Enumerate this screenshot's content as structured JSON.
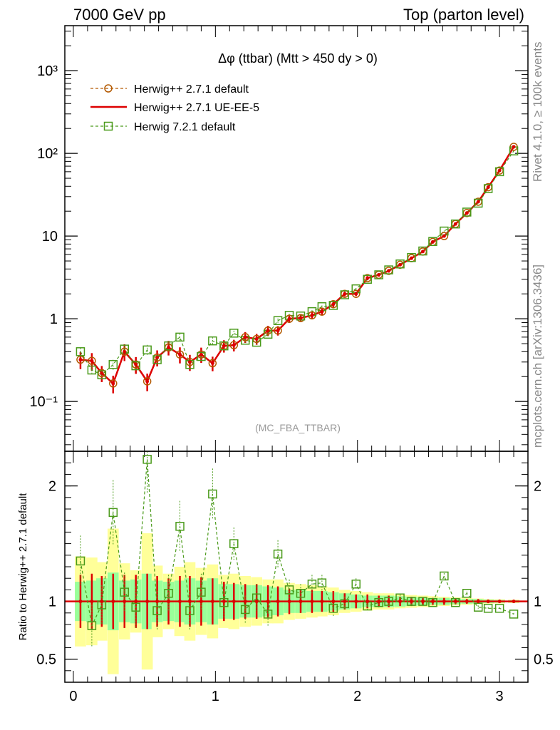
{
  "header": {
    "left": "7000 GeV pp",
    "right": "Top (parton level)"
  },
  "side_labels": {
    "upper": "Rivet 4.1.0, ≥ 100k events",
    "lower": "mcplots.cern.ch [arXiv:1306.3436]"
  },
  "chart_data": [
    {
      "type": "line",
      "title": "Δφ (ttbar) (Mtt > 450 dy > 0)",
      "analysis_label": "(MC_FBA_TTBAR)",
      "yscale": "log",
      "ylim": [
        0.025,
        3500
      ],
      "xlim": [
        -0.06,
        3.2
      ],
      "y_tick_labels": [
        "10⁻¹",
        "1",
        "10",
        "10²",
        "10³"
      ],
      "y_tick_values": [
        0.1,
        1,
        10,
        100,
        1000
      ],
      "x": [
        0.05,
        0.13,
        0.2,
        0.28,
        0.36,
        0.44,
        0.52,
        0.59,
        0.67,
        0.75,
        0.82,
        0.9,
        0.98,
        1.06,
        1.13,
        1.21,
        1.29,
        1.37,
        1.44,
        1.52,
        1.6,
        1.68,
        1.75,
        1.83,
        1.91,
        1.99,
        2.07,
        2.15,
        2.22,
        2.3,
        2.38,
        2.46,
        2.53,
        2.61,
        2.69,
        2.77,
        2.85,
        2.92,
        3.0,
        3.1
      ],
      "series": [
        {
          "name": "Herwig++ 2.7.1 default",
          "style": "dashed-circle",
          "color": "#b35900",
          "values": [
            0.32,
            0.31,
            0.22,
            0.165,
            0.4,
            0.28,
            0.175,
            0.34,
            0.45,
            0.37,
            0.3,
            0.37,
            0.29,
            0.47,
            0.48,
            0.6,
            0.57,
            0.72,
            0.72,
            1.0,
            1.02,
            1.1,
            1.22,
            1.5,
            2.0,
            2.0,
            3.1,
            3.4,
            3.8,
            4.5,
            5.4,
            6.5,
            8.5,
            10.0,
            14.0,
            19.0,
            26.0,
            39.0,
            62.0,
            120.0
          ]
        },
        {
          "name": "Herwig++ 2.7.1 UE-EE-5",
          "style": "solid",
          "color": "#dd0000",
          "values": [
            0.32,
            0.31,
            0.22,
            0.165,
            0.4,
            0.28,
            0.175,
            0.34,
            0.45,
            0.37,
            0.3,
            0.37,
            0.29,
            0.47,
            0.48,
            0.6,
            0.57,
            0.72,
            0.72,
            1.0,
            1.02,
            1.1,
            1.22,
            1.5,
            2.0,
            2.0,
            3.1,
            3.4,
            3.8,
            4.5,
            5.4,
            6.5,
            8.5,
            10.0,
            14.0,
            19.0,
            26.0,
            39.0,
            62.0,
            120.0
          ]
        },
        {
          "name": "Herwig 7.2.1 default",
          "style": "dashed-square",
          "color": "#4a9a1a",
          "values": [
            0.4,
            0.24,
            0.21,
            0.28,
            0.43,
            0.27,
            0.42,
            0.32,
            0.47,
            0.6,
            0.28,
            0.35,
            0.54,
            0.47,
            0.67,
            0.55,
            0.52,
            0.65,
            0.95,
            1.1,
            1.08,
            1.22,
            1.4,
            1.45,
            1.95,
            2.3,
            3.0,
            3.4,
            3.9,
            4.6,
            5.5,
            6.6,
            8.6,
            11.5,
            14.0,
            19.5,
            25.0,
            37.5,
            60.0,
            107.0
          ]
        }
      ]
    },
    {
      "type": "line",
      "ylabel": "Ratio to Herwig++ 2.7.1 default",
      "xlim": [
        -0.06,
        3.2
      ],
      "ylim": [
        0.3,
        2.3
      ],
      "y_tick_labels": [
        "0.5",
        "1",
        "2"
      ],
      "y_tick_values": [
        0.5,
        1,
        2
      ],
      "x_tick_labels": [
        "0",
        "1",
        "2",
        "3"
      ],
      "x_tick_values": [
        0,
        1,
        2,
        3
      ],
      "band_yellow_halfwidth": [
        0.39,
        0.38,
        0.34,
        0.63,
        0.33,
        0.27,
        0.59,
        0.31,
        0.24,
        0.3,
        0.34,
        0.29,
        0.32,
        0.23,
        0.24,
        0.22,
        0.21,
        0.19,
        0.19,
        0.16,
        0.15,
        0.14,
        0.13,
        0.12,
        0.1,
        0.09,
        0.08,
        0.07,
        0.07,
        0.06,
        0.055,
        0.05,
        0.045,
        0.04,
        0.035,
        0.03,
        0.025,
        0.02,
        0.018,
        0.015
      ],
      "band_green_halfwidth": [
        0.17,
        0.18,
        0.2,
        0.25,
        0.18,
        0.19,
        0.24,
        0.18,
        0.17,
        0.18,
        0.2,
        0.18,
        0.2,
        0.15,
        0.15,
        0.14,
        0.14,
        0.13,
        0.12,
        0.1,
        0.1,
        0.09,
        0.09,
        0.08,
        0.07,
        0.06,
        0.05,
        0.05,
        0.05,
        0.045,
        0.04,
        0.035,
        0.03,
        0.03,
        0.025,
        0.02,
        0.02,
        0.015,
        0.012,
        0.01
      ],
      "ref_err": [
        0.23,
        0.24,
        0.22,
        0.24,
        0.23,
        0.23,
        0.24,
        0.22,
        0.2,
        0.22,
        0.22,
        0.21,
        0.2,
        0.17,
        0.16,
        0.15,
        0.15,
        0.14,
        0.13,
        0.11,
        0.1,
        0.1,
        0.09,
        0.09,
        0.07,
        0.06,
        0.06,
        0.05,
        0.05,
        0.04,
        0.04,
        0.035,
        0.03,
        0.03,
        0.025,
        0.02,
        0.02,
        0.015,
        0.012,
        0.01
      ],
      "ratio_herwig721": [
        1.35,
        0.79,
        0.97,
        1.77,
        1.08,
        0.95,
        2.23,
        0.92,
        1.07,
        1.65,
        0.92,
        1.08,
        1.93,
        0.99,
        1.5,
        0.93,
        1.03,
        0.89,
        1.41,
        1.1,
        1.07,
        1.15,
        1.16,
        0.94,
        0.98,
        1.15,
        0.96,
        0.99,
        1.0,
        1.03,
        1.0,
        1.0,
        0.99,
        1.22,
        0.99,
        1.07,
        0.95,
        0.94,
        0.94,
        0.89
      ],
      "ratio_err": [
        0.22,
        0.18,
        0.17,
        0.28,
        0.17,
        0.18,
        0.3,
        0.17,
        0.16,
        0.22,
        0.17,
        0.16,
        0.22,
        0.13,
        0.14,
        0.12,
        0.12,
        0.11,
        0.12,
        0.09,
        0.08,
        0.08,
        0.07,
        0.07,
        0.06,
        0.05,
        0.05,
        0.04,
        0.04,
        0.03,
        0.03,
        0.03,
        0.025,
        0.025,
        0.02,
        0.015,
        0.015,
        0.01,
        0.01,
        0.01
      ]
    }
  ]
}
